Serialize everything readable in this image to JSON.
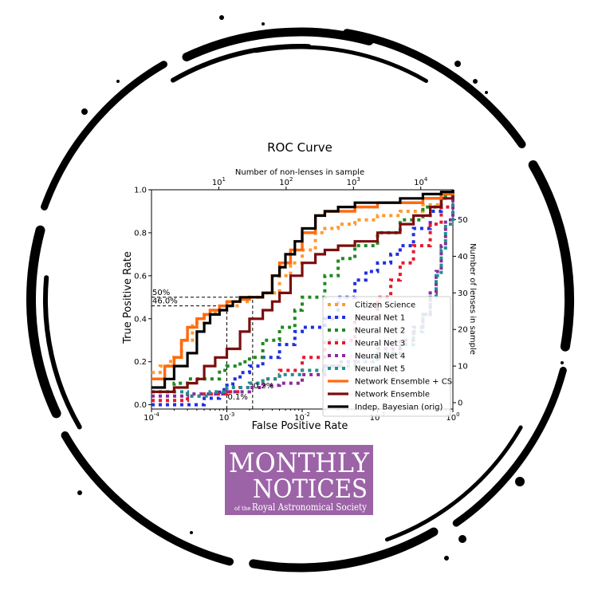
{
  "colors": {
    "citizen_science": "#ff9a2e",
    "neural_net_1": "#1f2fe0",
    "neural_net_2": "#1f8a1f",
    "neural_net_3": "#e8182a",
    "neural_net_4": "#8a2a9e",
    "neural_net_5": "#1f8f8f",
    "network_ensemble_cs": "#ff6a10",
    "network_ensemble": "#7a0e0e",
    "indep_bayesian": "#000000",
    "ring": "#000000",
    "logo_bg": "#9c63a7"
  },
  "chart_data": {
    "type": "line",
    "title": "ROC Curve",
    "xlabel": "False Positive Rate",
    "ylabel": "True Positive Rate",
    "top_xlabel": "Number of non-lenses in sample",
    "right_ylabel": "Number of lenses in sample",
    "xscale": "log",
    "xlim": [
      0.0001,
      1
    ],
    "ylim": [
      -0.02,
      1.0
    ],
    "x_ticks": [
      0.0001,
      0.001,
      0.01,
      0.1,
      1
    ],
    "x_tick_labels": [
      "10",
      "10",
      "10",
      "10",
      "10"
    ],
    "x_tick_exps": [
      "-4",
      "-3",
      "-2",
      "-1",
      "0"
    ],
    "y_ticks": [
      0.0,
      0.2,
      0.4,
      0.6,
      0.8,
      1.0
    ],
    "y_tick_labels": [
      "0.0",
      "0.2",
      "0.4",
      "0.6",
      "0.8",
      "1.0"
    ],
    "top_x_ticks": [
      10,
      100,
      1000,
      10000
    ],
    "top_x_tick_labels": [
      "10",
      "10",
      "10",
      "10"
    ],
    "top_x_tick_exps": [
      "1",
      "2",
      "3",
      "4"
    ],
    "top_x_max": 30000,
    "right_y_ticks": [
      0,
      10,
      20,
      30,
      40,
      50
    ],
    "right_y_tick_labels": [
      "0",
      "10",
      "20",
      "30",
      "40",
      "50"
    ],
    "right_y_max": 56,
    "legend_placement": "lower-right",
    "grid": false,
    "annotations": [
      {
        "label": "50%",
        "y": 0.5,
        "x": 6e-05
      },
      {
        "label": "46.0%",
        "y": 0.46,
        "x": 6e-05
      },
      {
        "label": "0.1%",
        "x": 0.001,
        "y": 0.0
      },
      {
        "label": "0.2%",
        "x": 0.0022,
        "y": 0.0
      }
    ],
    "reference_lines": [
      {
        "kind": "h",
        "y": 0.5,
        "x_end": 0.0022
      },
      {
        "kind": "h",
        "y": 0.46,
        "x_end": 0.001
      },
      {
        "kind": "v",
        "x": 0.001,
        "y_end": 0.46
      },
      {
        "kind": "v",
        "x": 0.0022,
        "y_end": 0.5
      }
    ],
    "series": [
      {
        "name": "Citizen Science",
        "style": "dotted",
        "color_key": "citizen_science",
        "x": [
          0.0001,
          0.00013,
          0.00018,
          0.00025,
          0.00035,
          0.0005,
          0.0007,
          0.001,
          0.0015,
          0.002,
          0.003,
          0.005,
          0.007,
          0.01,
          0.015,
          0.02,
          0.03,
          0.05,
          0.1,
          0.2,
          0.4,
          0.7,
          1
        ],
        "y": [
          0.15,
          0.18,
          0.22,
          0.3,
          0.38,
          0.42,
          0.44,
          0.46,
          0.48,
          0.5,
          0.52,
          0.6,
          0.66,
          0.72,
          0.8,
          0.82,
          0.84,
          0.86,
          0.88,
          0.9,
          0.93,
          0.96,
          1.0
        ]
      },
      {
        "name": "Neural Net 1",
        "style": "dotted",
        "color_key": "neural_net_1",
        "x": [
          0.0001,
          0.0003,
          0.0005,
          0.0008,
          0.001,
          0.0012,
          0.0015,
          0.002,
          0.003,
          0.005,
          0.008,
          0.01,
          0.02,
          0.03,
          0.05,
          0.07,
          0.1,
          0.15,
          0.2,
          0.3,
          0.5,
          0.7,
          1
        ],
        "y": [
          0.0,
          0.0,
          0.03,
          0.07,
          0.09,
          0.12,
          0.15,
          0.18,
          0.22,
          0.28,
          0.34,
          0.36,
          0.4,
          0.5,
          0.58,
          0.62,
          0.66,
          0.7,
          0.74,
          0.82,
          0.9,
          0.98,
          1.0
        ]
      },
      {
        "name": "Neural Net 2",
        "style": "dotted",
        "color_key": "neural_net_2",
        "x": [
          0.0001,
          0.0002,
          0.0003,
          0.0005,
          0.0008,
          0.001,
          0.0015,
          0.002,
          0.003,
          0.005,
          0.008,
          0.01,
          0.02,
          0.03,
          0.05,
          0.1,
          0.2,
          0.4,
          0.7,
          1
        ],
        "y": [
          0.06,
          0.1,
          0.12,
          0.12,
          0.16,
          0.18,
          0.2,
          0.22,
          0.3,
          0.36,
          0.44,
          0.5,
          0.6,
          0.68,
          0.74,
          0.8,
          0.86,
          0.92,
          0.97,
          1.0
        ]
      },
      {
        "name": "Neural Net 3",
        "style": "dotted",
        "color_key": "neural_net_3",
        "x": [
          0.0001,
          0.0003,
          0.0005,
          0.001,
          0.0015,
          0.002,
          0.003,
          0.005,
          0.01,
          0.02,
          0.05,
          0.1,
          0.15,
          0.2,
          0.3,
          0.5,
          0.7,
          1
        ],
        "y": [
          0.02,
          0.04,
          0.05,
          0.06,
          0.08,
          0.1,
          0.12,
          0.16,
          0.22,
          0.3,
          0.4,
          0.5,
          0.58,
          0.66,
          0.74,
          0.84,
          0.92,
          1.0
        ]
      },
      {
        "name": "Neural Net 4",
        "style": "dotted",
        "color_key": "neural_net_4",
        "x": [
          0.0001,
          0.0003,
          0.001,
          0.002,
          0.003,
          0.005,
          0.01,
          0.02,
          0.03,
          0.05,
          0.1,
          0.2,
          0.3,
          0.4,
          0.5,
          0.6,
          0.7,
          0.8,
          1
        ],
        "y": [
          0.04,
          0.05,
          0.06,
          0.08,
          0.09,
          0.1,
          0.14,
          0.18,
          0.2,
          0.22,
          0.26,
          0.3,
          0.36,
          0.42,
          0.52,
          0.62,
          0.74,
          0.86,
          1.0
        ]
      },
      {
        "name": "Neural Net 5",
        "style": "dotted",
        "color_key": "neural_net_5",
        "x": [
          0.0001,
          0.0003,
          0.0006,
          0.001,
          0.002,
          0.003,
          0.005,
          0.01,
          0.02,
          0.05,
          0.1,
          0.2,
          0.3,
          0.4,
          0.5,
          0.6,
          0.7,
          0.8,
          1
        ],
        "y": [
          0.06,
          0.04,
          0.06,
          0.08,
          0.1,
          0.12,
          0.14,
          0.16,
          0.18,
          0.2,
          0.24,
          0.28,
          0.34,
          0.42,
          0.5,
          0.6,
          0.72,
          0.84,
          1.0
        ]
      },
      {
        "name": "Network Ensemble + CS",
        "style": "solid",
        "color_key": "network_ensemble_cs",
        "x": [
          0.0001,
          0.00015,
          0.0002,
          0.00025,
          0.0003,
          0.0004,
          0.0005,
          0.0006,
          0.0008,
          0.001,
          0.0012,
          0.0015,
          0.002,
          0.003,
          0.004,
          0.005,
          0.007,
          0.01,
          0.015,
          0.02,
          0.03,
          0.05,
          0.1,
          0.2,
          0.4,
          0.7,
          1
        ],
        "y": [
          0.12,
          0.18,
          0.22,
          0.3,
          0.36,
          0.4,
          0.42,
          0.44,
          0.46,
          0.48,
          0.48,
          0.49,
          0.5,
          0.52,
          0.6,
          0.66,
          0.72,
          0.8,
          0.88,
          0.9,
          0.9,
          0.92,
          0.94,
          0.94,
          0.96,
          0.98,
          1.0
        ]
      },
      {
        "name": "Network Ensemble",
        "style": "solid",
        "color_key": "network_ensemble",
        "x": [
          0.0001,
          0.0002,
          0.0003,
          0.0004,
          0.0005,
          0.0007,
          0.001,
          0.0015,
          0.002,
          0.003,
          0.004,
          0.005,
          0.007,
          0.01,
          0.015,
          0.02,
          0.03,
          0.05,
          0.1,
          0.2,
          0.3,
          0.5,
          0.7,
          1
        ],
        "y": [
          0.06,
          0.08,
          0.1,
          0.12,
          0.18,
          0.22,
          0.26,
          0.34,
          0.4,
          0.44,
          0.48,
          0.52,
          0.6,
          0.66,
          0.7,
          0.72,
          0.74,
          0.76,
          0.8,
          0.84,
          0.88,
          0.92,
          0.96,
          1.0
        ]
      },
      {
        "name": "Indep. Bayesian (orig)",
        "style": "solid",
        "color_key": "indep_bayesian",
        "x": [
          0.0001,
          0.00015,
          0.0002,
          0.0003,
          0.0004,
          0.0005,
          0.0006,
          0.0008,
          0.001,
          0.0012,
          0.0015,
          0.002,
          0.003,
          0.004,
          0.005,
          0.006,
          0.008,
          0.01,
          0.015,
          0.02,
          0.03,
          0.05,
          0.1,
          0.2,
          0.4,
          0.7,
          1
        ],
        "y": [
          0.08,
          0.12,
          0.18,
          0.24,
          0.34,
          0.38,
          0.42,
          0.44,
          0.46,
          0.48,
          0.5,
          0.5,
          0.52,
          0.6,
          0.64,
          0.7,
          0.76,
          0.82,
          0.88,
          0.9,
          0.92,
          0.94,
          0.94,
          0.96,
          0.98,
          0.99,
          1.0
        ]
      }
    ]
  },
  "logo": {
    "line1": "MONTHLY",
    "line2": "NOTICES",
    "prefix": "of the",
    "line3": "Royal Astronomical Society"
  }
}
